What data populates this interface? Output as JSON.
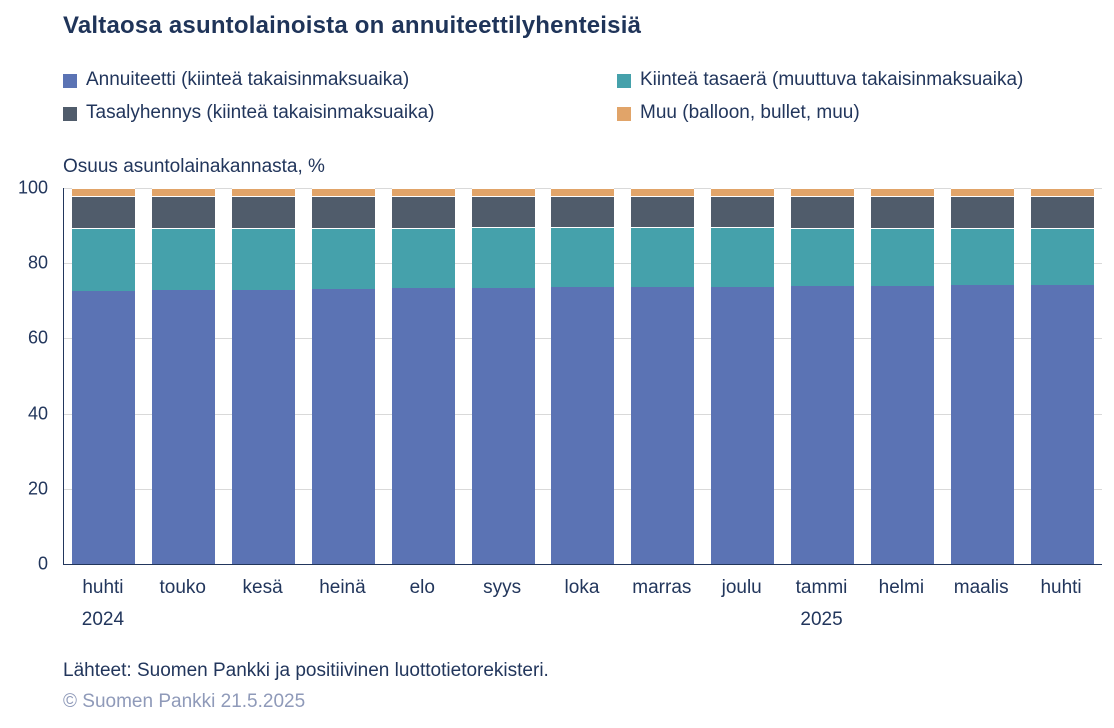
{
  "title": "Valtaosa asuntolainoista on annuiteettilyhenteisiä",
  "axis_title": "Osuus asuntolainakannasta, %",
  "footer": {
    "sources": "Lähteet: Suomen Pankki ja positiivinen luottotietorekisteri.",
    "copyright": "© Suomen Pankki 21.5.2025"
  },
  "colors": {
    "annuiteetti": "#5b73b4",
    "kiintea_tasaera": "#45a1ab",
    "tasalyhennys": "#505c6b",
    "muu": "#e1a469",
    "title_text": "#1f3459",
    "body_text": "#22365c",
    "copyright_text": "#8f9ab9",
    "gridline": "#d9d9d9",
    "axis_line": "#22365c"
  },
  "chart_data": {
    "type": "bar",
    "stacked": true,
    "title": "Valtaosa asuntolainoista on annuiteettilyhenteisiä",
    "ylabel": "Osuus asuntolainakannasta, %",
    "xlabel": "",
    "ylim": [
      0,
      100
    ],
    "yticks": [
      0,
      20,
      40,
      60,
      80,
      100
    ],
    "grid": true,
    "legend_position": "top",
    "categories": [
      "huhti",
      "touko",
      "kesä",
      "heinä",
      "elo",
      "syys",
      "loka",
      "marras",
      "joulu",
      "tammi",
      "helmi",
      "maalis",
      "huhti"
    ],
    "year_labels": [
      {
        "index": 0,
        "label": "2024"
      },
      {
        "index": 9,
        "label": "2025"
      }
    ],
    "series": [
      {
        "name": "Annuiteetti (kiinteä takaisinmaksuaika)",
        "key": "annuiteetti",
        "color": "#5b73b4",
        "values": [
          72.7,
          72.9,
          73.0,
          73.2,
          73.4,
          73.5,
          73.6,
          73.7,
          73.8,
          73.9,
          74.0,
          74.1,
          74.2
        ]
      },
      {
        "name": "Kiinteä tasaerä (muuttuva takaisinmaksuaika)",
        "key": "kiintea-tasaera",
        "color": "#45a1ab",
        "values": [
          16.8,
          16.6,
          16.5,
          16.3,
          16.1,
          16.0,
          15.9,
          15.8,
          15.7,
          15.6,
          15.5,
          15.4,
          15.3
        ]
      },
      {
        "name": "Tasalyhennys (kiinteä takaisinmaksuaika)",
        "key": "tasalyhennys",
        "color": "#505c6b",
        "values": [
          8.5,
          8.5,
          8.5,
          8.5,
          8.5,
          8.5,
          8.5,
          8.5,
          8.5,
          8.5,
          8.5,
          8.5,
          8.5
        ]
      },
      {
        "name": "Muu (balloon, bullet, muu)",
        "key": "muu",
        "color": "#e1a469",
        "values": [
          2.0,
          2.0,
          2.0,
          2.0,
          2.0,
          2.0,
          2.0,
          2.0,
          2.0,
          2.0,
          2.0,
          2.0,
          2.0
        ]
      }
    ],
    "legend_order": [
      0,
      1,
      2,
      3
    ]
  }
}
